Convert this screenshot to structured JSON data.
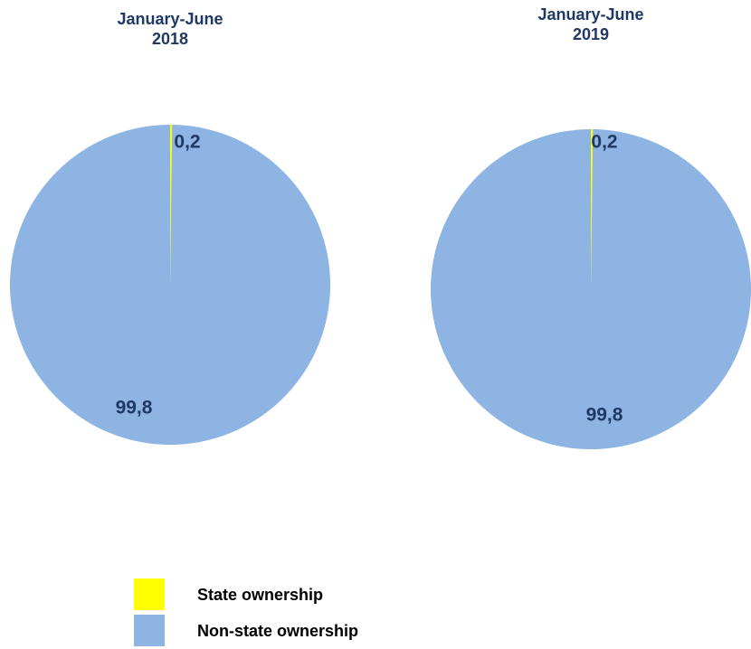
{
  "chart_data": [
    {
      "type": "pie",
      "title": "January-June 2018",
      "categories": [
        "State ownership",
        "Non-state ownership"
      ],
      "values": [
        0.2,
        99.8
      ],
      "value_labels": [
        "0,2",
        "99,8"
      ],
      "colors": [
        "#ffff00",
        "#8eb4e3"
      ]
    },
    {
      "type": "pie",
      "title": "January-June 2019",
      "categories": [
        "State ownership",
        "Non-state ownership"
      ],
      "values": [
        0.2,
        99.8
      ],
      "value_labels": [
        "0,2",
        "99,8"
      ],
      "colors": [
        "#ffff00",
        "#8eb4e3"
      ]
    }
  ]
}
